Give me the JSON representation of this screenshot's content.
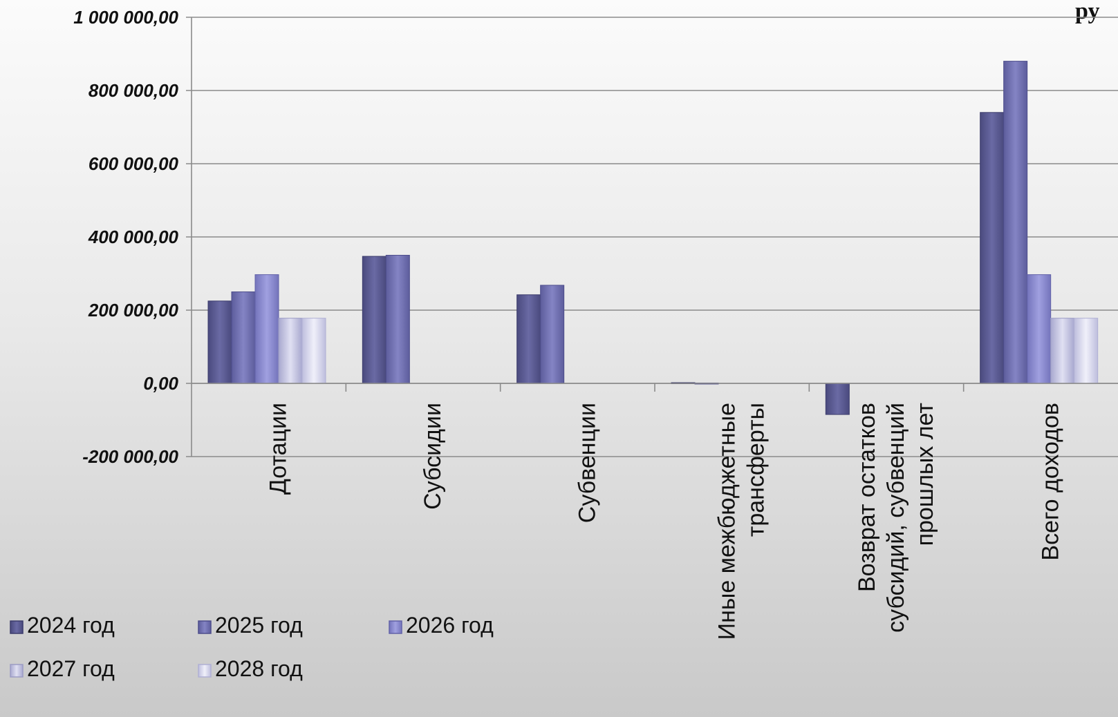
{
  "chart_data": {
    "type": "bar",
    "title": "",
    "unit_label": "ру",
    "xlabel": "",
    "ylabel": "",
    "ylim": [
      -200000,
      1000000
    ],
    "y_ticks": [
      {
        "value": 1000000,
        "label": "1 000 000,00"
      },
      {
        "value": 800000,
        "label": "800 000,00"
      },
      {
        "value": 600000,
        "label": "600 000,00"
      },
      {
        "value": 400000,
        "label": "400 000,00"
      },
      {
        "value": 200000,
        "label": "200 000,00"
      },
      {
        "value": 0,
        "label": "0,00"
      },
      {
        "value": -200000,
        "label": "-200 000,00"
      }
    ],
    "grid": true,
    "legend_position": "bottom-left",
    "categories": [
      [
        "Дотации"
      ],
      [
        "Субсидии"
      ],
      [
        "Субвенции"
      ],
      [
        "Иные межбюджетные",
        "трансферты"
      ],
      [
        "Возврат остатков",
        "субсидий,  субвенций",
        "прошлых лет"
      ],
      [
        "Всего доходов"
      ]
    ],
    "series": [
      {
        "name": "2024 год",
        "color": "#5e5e96",
        "values": [
          225000,
          347000,
          242000,
          2000,
          -85000,
          740000
        ]
      },
      {
        "name": "2025 год",
        "color": "#7474b2",
        "values": [
          250000,
          350000,
          268000,
          1000,
          0,
          880000
        ]
      },
      {
        "name": "2026 год",
        "color": "#8e8ed0",
        "values": [
          297000,
          0,
          0,
          0,
          0,
          297000
        ]
      },
      {
        "name": "2027 год",
        "color": "#c4c4e2",
        "values": [
          178000,
          0,
          0,
          0,
          0,
          178000
        ]
      },
      {
        "name": "2028 год",
        "color": "#d8d8ee",
        "values": [
          178000,
          0,
          0,
          0,
          0,
          178000
        ]
      }
    ]
  }
}
